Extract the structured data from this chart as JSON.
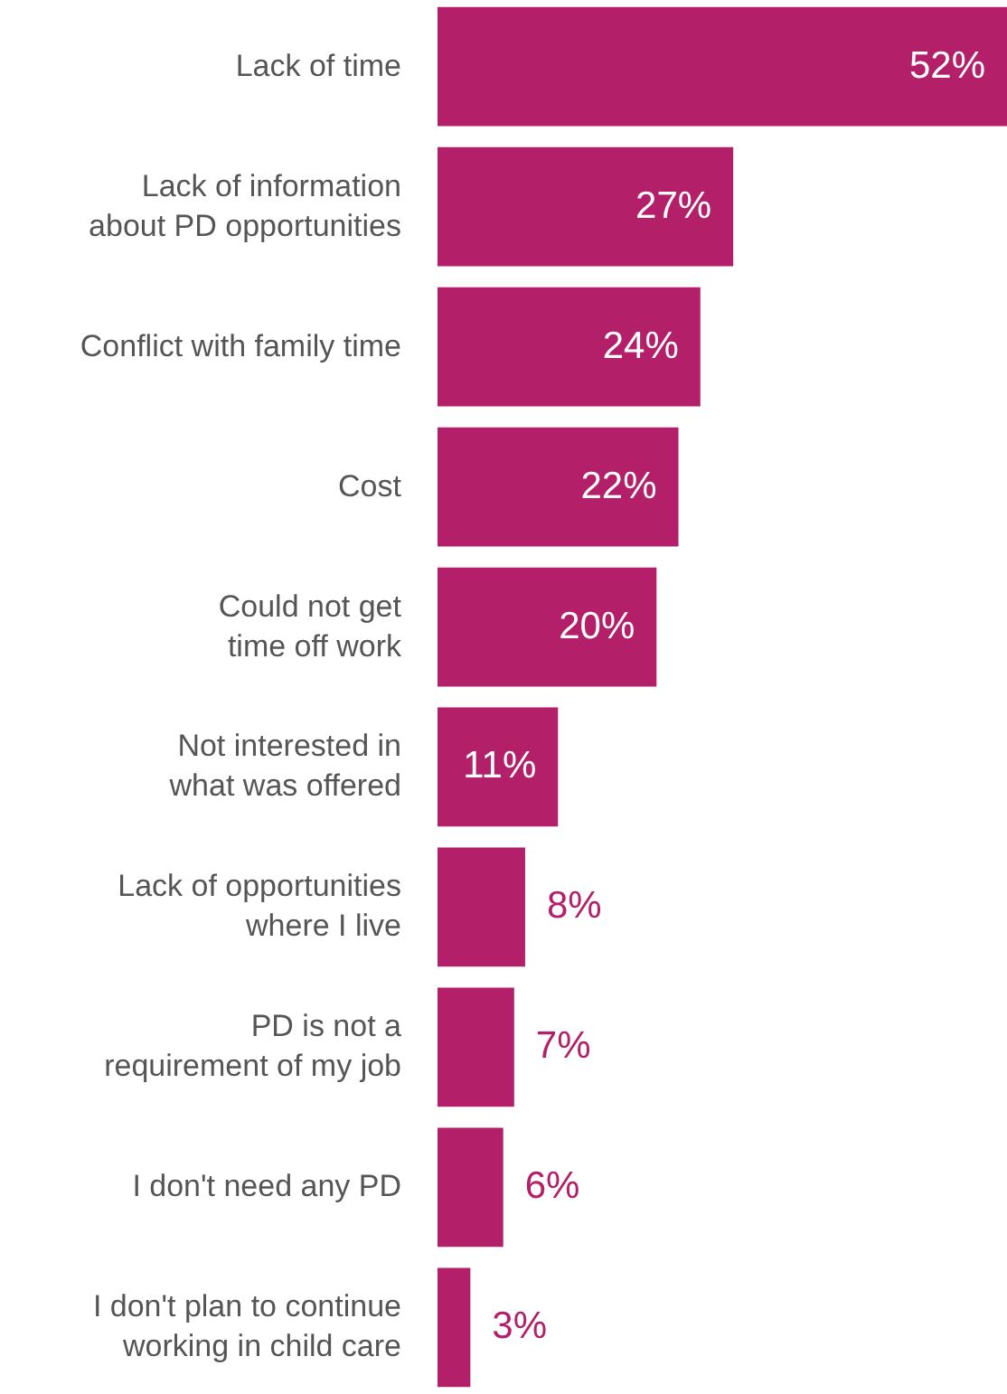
{
  "chart_data": {
    "type": "bar",
    "orientation": "horizontal",
    "categories": [
      "Lack of time",
      "Lack of information\nabout PD opportunities",
      "Conflict with family time",
      "Cost",
      "Could not get\ntime off work",
      "Not interested in\nwhat was offered",
      "Lack of opportunities\nwhere I live",
      "PD is not a\nrequirement of my job",
      "I don't need any PD",
      "I don't plan to continue\nworking in child care"
    ],
    "values": [
      52,
      27,
      24,
      22,
      20,
      11,
      8,
      7,
      6,
      3
    ],
    "value_labels": [
      "52%",
      "27%",
      "24%",
      "22%",
      "20%",
      "11%",
      "8%",
      "7%",
      "6%",
      "3%"
    ],
    "color": "#b31f69",
    "xlim": [
      0,
      52
    ],
    "grid": false
  }
}
